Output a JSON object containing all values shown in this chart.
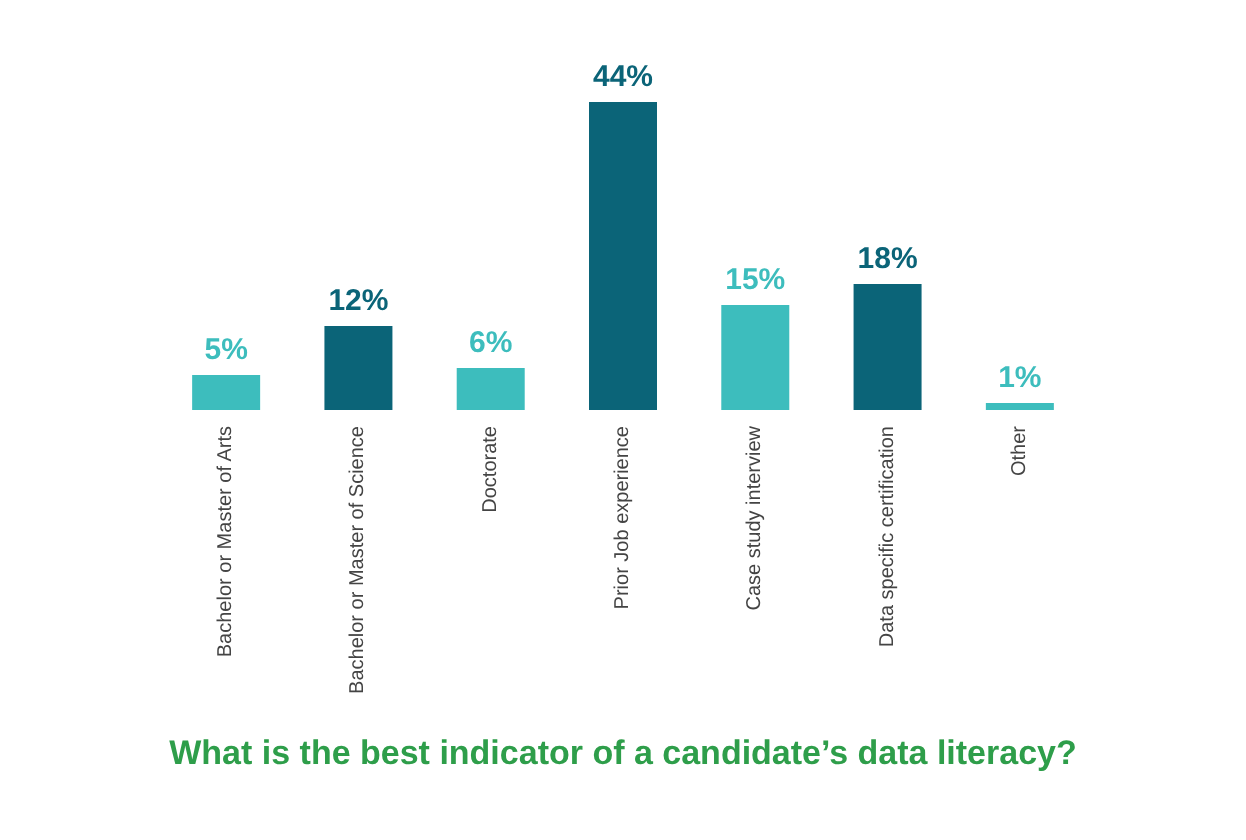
{
  "chart_data": {
    "type": "bar",
    "title": "What is the best indicator of a candidate’s data literacy?",
    "categories": [
      "Bachelor or Master of Arts",
      "Bachelor or Master of Science",
      "Doctorate",
      "Prior Job experience",
      "Case study interview",
      "Data specific certification",
      "Other"
    ],
    "values": [
      5,
      12,
      6,
      44,
      15,
      18,
      1
    ],
    "colors": [
      "#3dbdbd",
      "#0b6478",
      "#3dbdbd",
      "#0b6478",
      "#3dbdbd",
      "#0b6478",
      "#3dbdbd"
    ],
    "value_labels": [
      "5%",
      "12%",
      "6%",
      "44%",
      "15%",
      "18%",
      "1%"
    ]
  }
}
